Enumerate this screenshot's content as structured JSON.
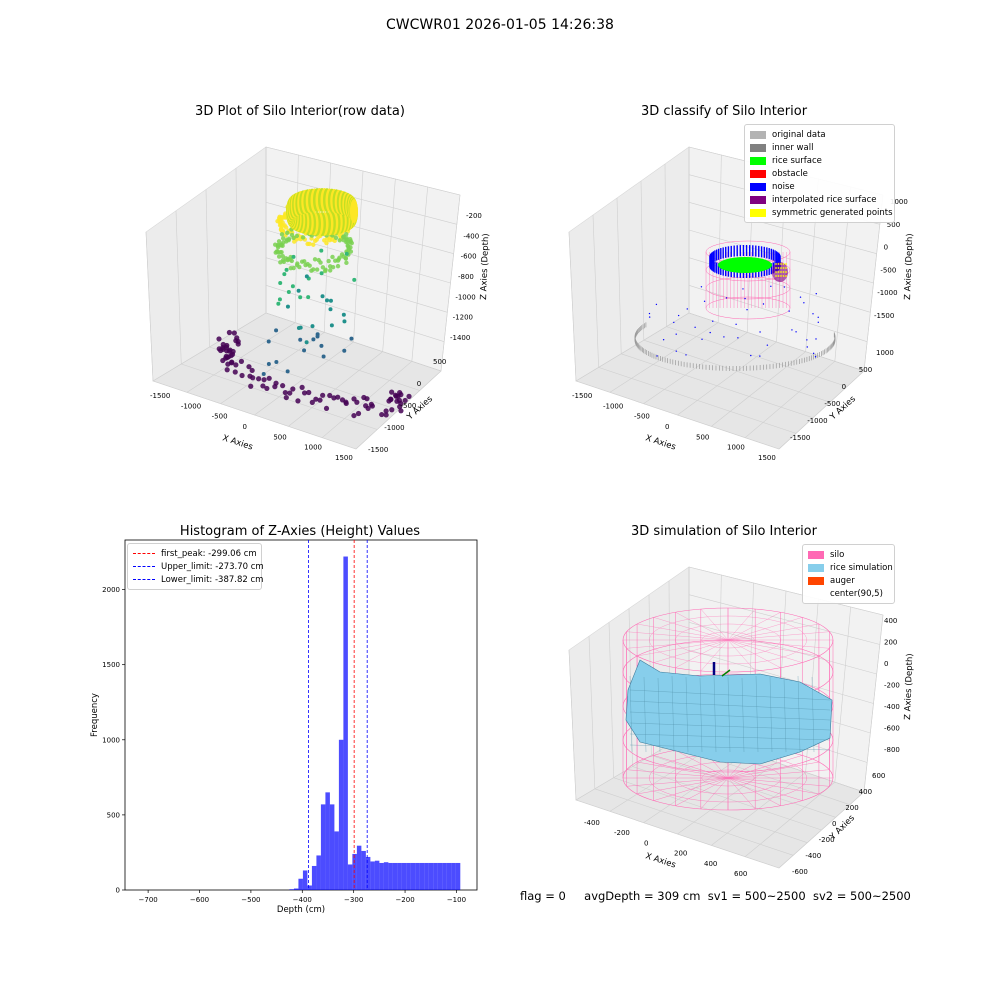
{
  "figure": {
    "title": "CWCWR01 2026-01-05 14:26:38",
    "footer": {
      "flag": "flag = 0",
      "avg_depth": "avgDepth = 309 cm",
      "sv1": "sv1 = 500~2500",
      "sv2": "sv2 = 500~2500"
    }
  },
  "chart_data": [
    {
      "type": "scatter",
      "title": "3D Plot of Silo Interior(row data)",
      "xlabel": "X Axies",
      "ylabel": "Y Axies",
      "zlabel": "Z Axies (Depth)",
      "x_ticks": [
        "-1500",
        "-1000",
        "-500",
        "0",
        "500",
        "1000",
        "1500"
      ],
      "y_ticks": [
        "-1500",
        "-1000",
        "-500",
        "0",
        "500"
      ],
      "z_ticks": [
        "-1400",
        "-1200",
        "-1000",
        "-800",
        "-600",
        "-400",
        "-200"
      ],
      "xlim": [
        -1600,
        1600
      ],
      "ylim": [
        -1600,
        800
      ],
      "zlim": [
        -1450,
        -100
      ],
      "colormap": "viridis",
      "point_groups": [
        {
          "shape": "ring",
          "radius": 500,
          "depth": -250,
          "color": "#fde725"
        },
        {
          "shape": "ring",
          "radius": 520,
          "depth": -450,
          "color": "#7ad151"
        },
        {
          "shape": "scatter",
          "radius_range": [
            100,
            800
          ],
          "depth_range": [
            -1300,
            -500
          ],
          "color": "#22a884"
        },
        {
          "shape": "ring",
          "radius": 1500,
          "depth": -1400,
          "color": "#440154"
        }
      ]
    },
    {
      "type": "scatter",
      "title": "3D classify of Silo Interior",
      "xlabel": "X Axies",
      "ylabel": "Y Axies",
      "zlabel": "Z Axies (Depth)",
      "x_ticks": [
        "-1500",
        "-1000",
        "-500",
        "0",
        "500",
        "1000",
        "1500"
      ],
      "y_ticks": [
        "-1500",
        "-1000",
        "-500",
        "0",
        "500",
        "1000"
      ],
      "z_ticks": [
        "-1500",
        "-1000",
        "-500",
        "0",
        "500",
        "1000"
      ],
      "legend": [
        {
          "label": "original data",
          "color": "#b3b3b3"
        },
        {
          "label": "inner wall",
          "color": "#808080"
        },
        {
          "label": "rice surface",
          "color": "#00ff00"
        },
        {
          "label": "obstacle",
          "color": "#ff0000"
        },
        {
          "label": "noise",
          "color": "#0000ff"
        },
        {
          "label": "interpolated rice surface",
          "color": "#800080"
        },
        {
          "label": "symmetric generated points",
          "color": "#ffff00"
        }
      ]
    },
    {
      "type": "bar",
      "title": "Histogram of Z-Axies (Height) Values",
      "xlabel": "Depth (cm)",
      "ylabel": "Frequency",
      "xlim": [
        -745,
        -60
      ],
      "ylim": [
        0,
        2330
      ],
      "x_ticks": [
        -700,
        -600,
        -500,
        -400,
        -300,
        -200,
        -100
      ],
      "y_ticks": [
        0,
        500,
        1000,
        1500,
        2000
      ],
      "bar_color": "#0000ff",
      "bin_start": -425,
      "bin_width": 8.75,
      "values": [
        5,
        10,
        75,
        130,
        30,
        160,
        230,
        570,
        650,
        570,
        390,
        1000,
        2220,
        170,
        240,
        295,
        260,
        220,
        190,
        195,
        180,
        185,
        180,
        180,
        180,
        180,
        180,
        180,
        180,
        180,
        180,
        180,
        180,
        180,
        180,
        180,
        180,
        180
      ],
      "lines": [
        {
          "label": "first_peak: -299.06 cm",
          "value": -299.06,
          "color": "#ff0000"
        },
        {
          "label": "Upper_limit: -273.70 cm",
          "value": -273.7,
          "color": "#0000ff"
        },
        {
          "label": "Lower_limit: -387.82 cm",
          "value": -387.82,
          "color": "#0000ff"
        }
      ]
    },
    {
      "type": "surface",
      "title": "3D simulation of Silo Interior",
      "xlabel": "X Axies",
      "ylabel": "Y Axies",
      "zlabel": "Z Axies (Depth)",
      "x_ticks": [
        "-400",
        "-200",
        "0",
        "200",
        "400",
        "600"
      ],
      "y_ticks": [
        "-600",
        "-400",
        "-200",
        "0",
        "200",
        "400",
        "600"
      ],
      "z_ticks": [
        "-800",
        "-600",
        "-400",
        "-200",
        "0",
        "200",
        "400"
      ],
      "legend": [
        {
          "label": "silo",
          "color": "#ff69b4"
        },
        {
          "label": "rice simulation",
          "color": "#87ceeb"
        },
        {
          "label": "auger",
          "color": "#ff4500"
        },
        {
          "label": "center(90,5)",
          "color": ""
        }
      ]
    }
  ]
}
